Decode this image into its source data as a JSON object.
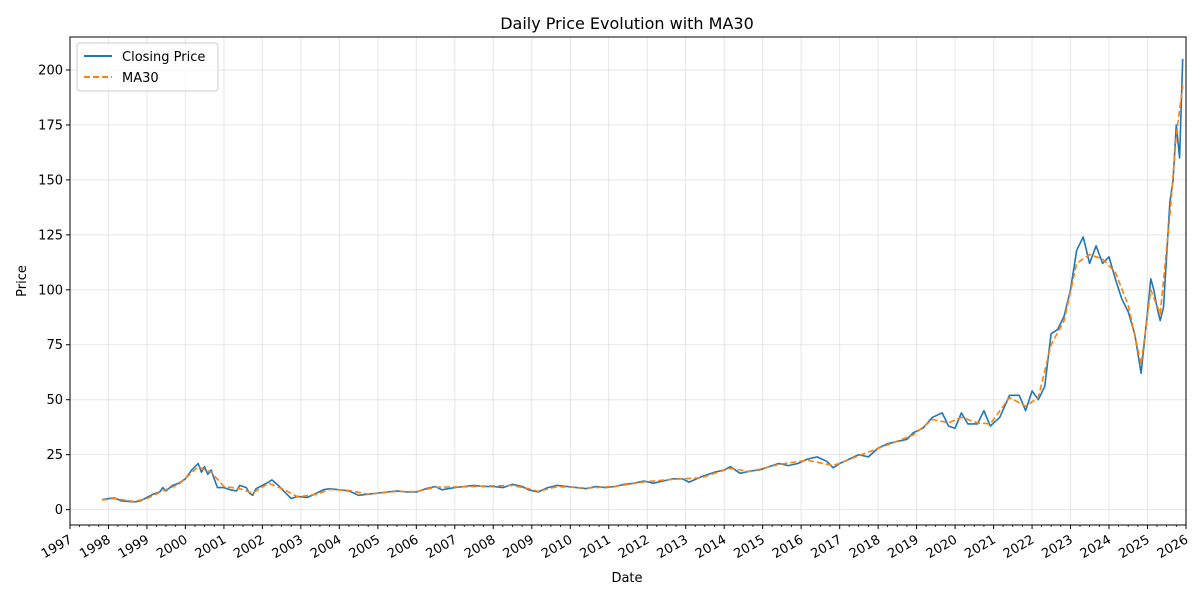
{
  "chart_data": {
    "type": "line",
    "title": "Daily Price Evolution with MA30",
    "xlabel": "Date",
    "ylabel": "Price",
    "xlim": [
      "1997-01-01",
      "2026-01-01"
    ],
    "ylim": [
      -7,
      215
    ],
    "x_ticks": [
      "1997",
      "1998",
      "1999",
      "2000",
      "2001",
      "2002",
      "2003",
      "2004",
      "2005",
      "2006",
      "2007",
      "2008",
      "2009",
      "2010",
      "2011",
      "2012",
      "2013",
      "2014",
      "2015",
      "2016",
      "2017",
      "2018",
      "2019",
      "2020",
      "2021",
      "2022",
      "2023",
      "2024",
      "2025",
      "2026"
    ],
    "y_ticks": [
      0,
      25,
      50,
      75,
      100,
      125,
      150,
      175,
      200
    ],
    "grid": true,
    "legend_position": "upper-left",
    "series": [
      {
        "name": "Closing Price",
        "color": "#1f77b4",
        "style": "solid",
        "points": [
          [
            "1997-11-01",
            4.5
          ],
          [
            "1998-01-01",
            5.0
          ],
          [
            "1998-03-01",
            5.3
          ],
          [
            "1998-05-01",
            4.0
          ],
          [
            "1998-07-01",
            3.8
          ],
          [
            "1998-09-01",
            3.5
          ],
          [
            "1998-11-01",
            4.0
          ],
          [
            "1999-01-01",
            5.5
          ],
          [
            "1999-03-01",
            7.0
          ],
          [
            "1999-05-01",
            8.0
          ],
          [
            "1999-06-01",
            10.0
          ],
          [
            "1999-07-01",
            8.5
          ],
          [
            "1999-09-01",
            11.0
          ],
          [
            "1999-11-01",
            12.0
          ],
          [
            "2000-01-01",
            14.0
          ],
          [
            "2000-03-01",
            18.0
          ],
          [
            "2000-05-01",
            21.0
          ],
          [
            "2000-06-01",
            17.0
          ],
          [
            "2000-07-01",
            19.5
          ],
          [
            "2000-08-01",
            16.0
          ],
          [
            "2000-09-01",
            18.0
          ],
          [
            "2000-10-01",
            14.0
          ],
          [
            "2000-11-01",
            10.0
          ],
          [
            "2001-01-01",
            10.0
          ],
          [
            "2001-03-01",
            9.0
          ],
          [
            "2001-05-01",
            8.5
          ],
          [
            "2001-06-01",
            11.0
          ],
          [
            "2001-08-01",
            10.0
          ],
          [
            "2001-09-01",
            7.5
          ],
          [
            "2001-10-01",
            6.5
          ],
          [
            "2001-11-01",
            9.5
          ],
          [
            "2002-01-01",
            11.0
          ],
          [
            "2002-03-01",
            12.5
          ],
          [
            "2002-04-01",
            13.5
          ],
          [
            "2002-06-01",
            11.0
          ],
          [
            "2002-08-01",
            8.0
          ],
          [
            "2002-10-01",
            5.0
          ],
          [
            "2002-12-01",
            6.0
          ],
          [
            "2003-03-01",
            5.5
          ],
          [
            "2003-06-01",
            7.5
          ],
          [
            "2003-08-01",
            9.0
          ],
          [
            "2003-10-01",
            9.5
          ],
          [
            "2004-01-01",
            9.0
          ],
          [
            "2004-04-01",
            8.5
          ],
          [
            "2004-07-01",
            6.5
          ],
          [
            "2004-10-01",
            7.0
          ],
          [
            "2005-01-01",
            7.5
          ],
          [
            "2005-04-01",
            8.0
          ],
          [
            "2005-07-01",
            8.5
          ],
          [
            "2005-10-01",
            8.0
          ],
          [
            "2006-01-01",
            8.0
          ],
          [
            "2006-04-01",
            9.5
          ],
          [
            "2006-07-01",
            10.5
          ],
          [
            "2006-09-01",
            9.0
          ],
          [
            "2007-01-01",
            10.0
          ],
          [
            "2007-04-01",
            10.5
          ],
          [
            "2007-07-01",
            11.0
          ],
          [
            "2007-10-01",
            10.5
          ],
          [
            "2008-01-01",
            10.5
          ],
          [
            "2008-04-01",
            10.0
          ],
          [
            "2008-07-01",
            11.5
          ],
          [
            "2008-10-01",
            10.5
          ],
          [
            "2008-12-01",
            9.0
          ],
          [
            "2009-03-01",
            8.0
          ],
          [
            "2009-06-01",
            10.0
          ],
          [
            "2009-09-01",
            11.0
          ],
          [
            "2009-12-01",
            10.5
          ],
          [
            "2010-03-01",
            10.0
          ],
          [
            "2010-06-01",
            9.5
          ],
          [
            "2010-09-01",
            10.5
          ],
          [
            "2010-12-01",
            10.0
          ],
          [
            "2011-03-01",
            10.5
          ],
          [
            "2011-06-01",
            11.5
          ],
          [
            "2011-09-01",
            12.0
          ],
          [
            "2011-12-01",
            13.0
          ],
          [
            "2012-03-01",
            12.0
          ],
          [
            "2012-06-01",
            13.0
          ],
          [
            "2012-09-01",
            14.0
          ],
          [
            "2012-12-01",
            14.0
          ],
          [
            "2013-02-01",
            12.5
          ],
          [
            "2013-06-01",
            15.0
          ],
          [
            "2013-10-01",
            17.0
          ],
          [
            "2014-01-01",
            18.0
          ],
          [
            "2014-03-01",
            19.5
          ],
          [
            "2014-06-01",
            16.5
          ],
          [
            "2014-09-01",
            17.5
          ],
          [
            "2014-12-01",
            18.0
          ],
          [
            "2015-03-01",
            19.5
          ],
          [
            "2015-06-01",
            21.0
          ],
          [
            "2015-09-01",
            20.0
          ],
          [
            "2015-12-01",
            21.0
          ],
          [
            "2016-03-01",
            23.0
          ],
          [
            "2016-06-01",
            24.0
          ],
          [
            "2016-09-01",
            22.0
          ],
          [
            "2016-11-01",
            19.0
          ],
          [
            "2017-01-01",
            21.0
          ],
          [
            "2017-04-01",
            23.0
          ],
          [
            "2017-07-01",
            25.0
          ],
          [
            "2017-10-01",
            24.0
          ],
          [
            "2018-01-01",
            28.0
          ],
          [
            "2018-04-01",
            30.0
          ],
          [
            "2018-07-01",
            31.0
          ],
          [
            "2018-10-01",
            32.0
          ],
          [
            "2018-12-01",
            35.0
          ],
          [
            "2019-03-01",
            37.0
          ],
          [
            "2019-06-01",
            42.0
          ],
          [
            "2019-09-01",
            44.0
          ],
          [
            "2019-11-01",
            38.0
          ],
          [
            "2020-01-01",
            37.0
          ],
          [
            "2020-03-01",
            44.0
          ],
          [
            "2020-05-01",
            39.0
          ],
          [
            "2020-08-01",
            39.0
          ],
          [
            "2020-10-01",
            45.0
          ],
          [
            "2020-12-01",
            38.0
          ],
          [
            "2021-03-01",
            42.0
          ],
          [
            "2021-06-01",
            52.0
          ],
          [
            "2021-09-01",
            52.0
          ],
          [
            "2021-11-01",
            45.0
          ],
          [
            "2022-01-01",
            54.0
          ],
          [
            "2022-03-01",
            50.0
          ],
          [
            "2022-05-01",
            56.0
          ],
          [
            "2022-07-01",
            80.0
          ],
          [
            "2022-09-01",
            82.0
          ],
          [
            "2022-11-01",
            88.0
          ],
          [
            "2023-01-01",
            100.0
          ],
          [
            "2023-03-01",
            118.0
          ],
          [
            "2023-05-01",
            124.0
          ],
          [
            "2023-07-01",
            112.0
          ],
          [
            "2023-09-01",
            120.0
          ],
          [
            "2023-11-01",
            112.0
          ],
          [
            "2024-01-01",
            115.0
          ],
          [
            "2024-03-01",
            105.0
          ],
          [
            "2024-05-01",
            96.0
          ],
          [
            "2024-07-01",
            90.0
          ],
          [
            "2024-09-01",
            80.0
          ],
          [
            "2024-11-01",
            62.0
          ],
          [
            "2025-01-01",
            90.0
          ],
          [
            "2025-02-01",
            105.0
          ],
          [
            "2025-03-01",
            100.0
          ],
          [
            "2025-04-01",
            92.0
          ],
          [
            "2025-05-01",
            86.0
          ],
          [
            "2025-06-01",
            92.0
          ],
          [
            "2025-08-01",
            140.0
          ],
          [
            "2025-09-01",
            150.0
          ],
          [
            "2025-10-01",
            175.0
          ],
          [
            "2025-11-01",
            160.0
          ],
          [
            "2025-12-01",
            205.0
          ]
        ]
      },
      {
        "name": "MA30",
        "color": "#ff7f0e",
        "style": "dashed",
        "points": [
          [
            "1997-11-01",
            4.4
          ],
          [
            "1998-03-01",
            5.0
          ],
          [
            "1998-09-01",
            3.7
          ],
          [
            "1999-01-01",
            5.0
          ],
          [
            "1999-06-01",
            8.5
          ],
          [
            "1999-11-01",
            11.5
          ],
          [
            "2000-05-01",
            19.5
          ],
          [
            "2000-09-01",
            17.0
          ],
          [
            "2001-01-01",
            10.5
          ],
          [
            "2001-06-01",
            9.5
          ],
          [
            "2001-10-01",
            7.5
          ],
          [
            "2002-03-01",
            12.0
          ],
          [
            "2002-08-01",
            9.0
          ],
          [
            "2002-12-01",
            5.8
          ],
          [
            "2003-06-01",
            7.0
          ],
          [
            "2003-10-01",
            9.2
          ],
          [
            "2004-04-01",
            8.7
          ],
          [
            "2004-10-01",
            7.0
          ],
          [
            "2005-07-01",
            8.3
          ],
          [
            "2006-01-01",
            8.2
          ],
          [
            "2006-07-01",
            10.2
          ],
          [
            "2007-04-01",
            10.4
          ],
          [
            "2007-10-01",
            10.7
          ],
          [
            "2008-07-01",
            11.0
          ],
          [
            "2008-12-01",
            9.5
          ],
          [
            "2009-03-01",
            8.3
          ],
          [
            "2009-09-01",
            10.5
          ],
          [
            "2010-06-01",
            9.8
          ],
          [
            "2011-03-01",
            10.5
          ],
          [
            "2011-12-01",
            12.6
          ],
          [
            "2012-09-01",
            13.8
          ],
          [
            "2013-06-01",
            14.5
          ],
          [
            "2013-10-01",
            16.5
          ],
          [
            "2014-03-01",
            18.8
          ],
          [
            "2014-09-01",
            17.3
          ],
          [
            "2015-06-01",
            20.5
          ],
          [
            "2016-03-01",
            22.5
          ],
          [
            "2016-11-01",
            20.0
          ],
          [
            "2017-07-01",
            24.5
          ],
          [
            "2018-04-01",
            29.5
          ],
          [
            "2018-12-01",
            34.0
          ],
          [
            "2019-06-01",
            41.0
          ],
          [
            "2019-11-01",
            39.5
          ],
          [
            "2020-03-01",
            42.0
          ],
          [
            "2020-08-01",
            39.5
          ],
          [
            "2020-12-01",
            39.0
          ],
          [
            "2021-06-01",
            51.0
          ],
          [
            "2021-11-01",
            47.0
          ],
          [
            "2022-03-01",
            51.0
          ],
          [
            "2022-07-01",
            75.0
          ],
          [
            "2022-11-01",
            86.0
          ],
          [
            "2023-03-01",
            112.0
          ],
          [
            "2023-07-01",
            116.0
          ],
          [
            "2023-11-01",
            114.0
          ],
          [
            "2024-03-01",
            108.0
          ],
          [
            "2024-07-01",
            93.0
          ],
          [
            "2024-11-01",
            66.0
          ],
          [
            "2025-02-01",
            100.0
          ],
          [
            "2025-05-01",
            89.0
          ],
          [
            "2025-08-01",
            134.0
          ],
          [
            "2025-10-01",
            170.0
          ],
          [
            "2025-12-01",
            193.0
          ]
        ]
      }
    ]
  }
}
